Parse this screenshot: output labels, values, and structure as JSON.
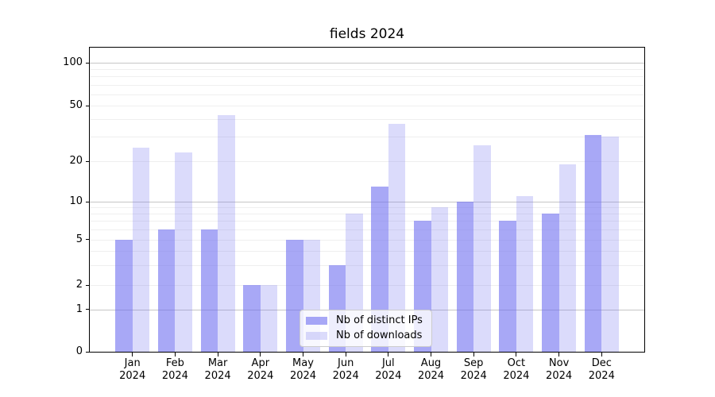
{
  "title": "fields 2024",
  "y_axis": {
    "ticks": [
      {
        "label": "100",
        "value": 100
      },
      {
        "label": "50",
        "value": 50
      },
      {
        "label": "20",
        "value": 20
      },
      {
        "label": "10",
        "value": 10
      },
      {
        "label": "5",
        "value": 5
      },
      {
        "label": "2",
        "value": 2
      },
      {
        "label": "1",
        "value": 1
      },
      {
        "label": "0",
        "value": 0
      }
    ]
  },
  "x_axis": {
    "labels": [
      {
        "month": "Jan",
        "year": "2024"
      },
      {
        "month": "Feb",
        "year": "2024"
      },
      {
        "month": "Mar",
        "year": "2024"
      },
      {
        "month": "Apr",
        "year": "2024"
      },
      {
        "month": "May",
        "year": "2024"
      },
      {
        "month": "Jun",
        "year": "2024"
      },
      {
        "month": "Jul",
        "year": "2024"
      },
      {
        "month": "Aug",
        "year": "2024"
      },
      {
        "month": "Sep",
        "year": "2024"
      },
      {
        "month": "Oct",
        "year": "2024"
      },
      {
        "month": "Nov",
        "year": "2024"
      },
      {
        "month": "Dec",
        "year": "2024"
      }
    ]
  },
  "legend": {
    "items": [
      {
        "label": "Nb of distinct IPs"
      },
      {
        "label": "Nb of downloads"
      }
    ]
  },
  "colors": {
    "ip_bar": "rgba(110,110,240,0.60)",
    "dl_bar": "rgba(110,110,240,0.25)",
    "ip_bar_flat_hex": "#a8a8f7",
    "dl_bar_flat_hex": "#dbdbf8",
    "major_grid": "#c6c6c6",
    "minor_grid": "#efefef",
    "axis": "#000000",
    "legend_border": "#cccccc"
  },
  "chart_data": {
    "type": "bar",
    "title": "fields 2024",
    "categories": [
      "Jan 2024",
      "Feb 2024",
      "Mar 2024",
      "Apr 2024",
      "May 2024",
      "Jun 2024",
      "Jul 2024",
      "Aug 2024",
      "Sep 2024",
      "Oct 2024",
      "Nov 2024",
      "Dec 2024"
    ],
    "series": [
      {
        "name": "Nb of distinct IPs",
        "values": [
          5,
          6,
          6,
          2,
          5,
          3,
          13,
          7,
          10,
          7,
          8,
          31
        ]
      },
      {
        "name": "Nb of downloads",
        "values": [
          25,
          23,
          43,
          2,
          5,
          8,
          37,
          9,
          26,
          11,
          19,
          30
        ]
      }
    ],
    "xlabel": "",
    "ylabel": "",
    "yscale": "log-like (symlog with 0 baseline)",
    "y_ticks": [
      0,
      1,
      2,
      5,
      10,
      20,
      50,
      100
    ],
    "y_minor_gridlines": [
      2,
      3,
      4,
      5,
      6,
      7,
      8,
      9,
      20,
      30,
      40,
      50,
      60,
      70,
      80,
      90
    ],
    "y_major_gridlines": [
      1,
      10,
      100
    ],
    "ylim": [
      0,
      128
    ],
    "grid": "horizontal major and minor gridlines",
    "legend_position": "lower center inside plot",
    "bar_group": "paired side-by-side per month"
  }
}
